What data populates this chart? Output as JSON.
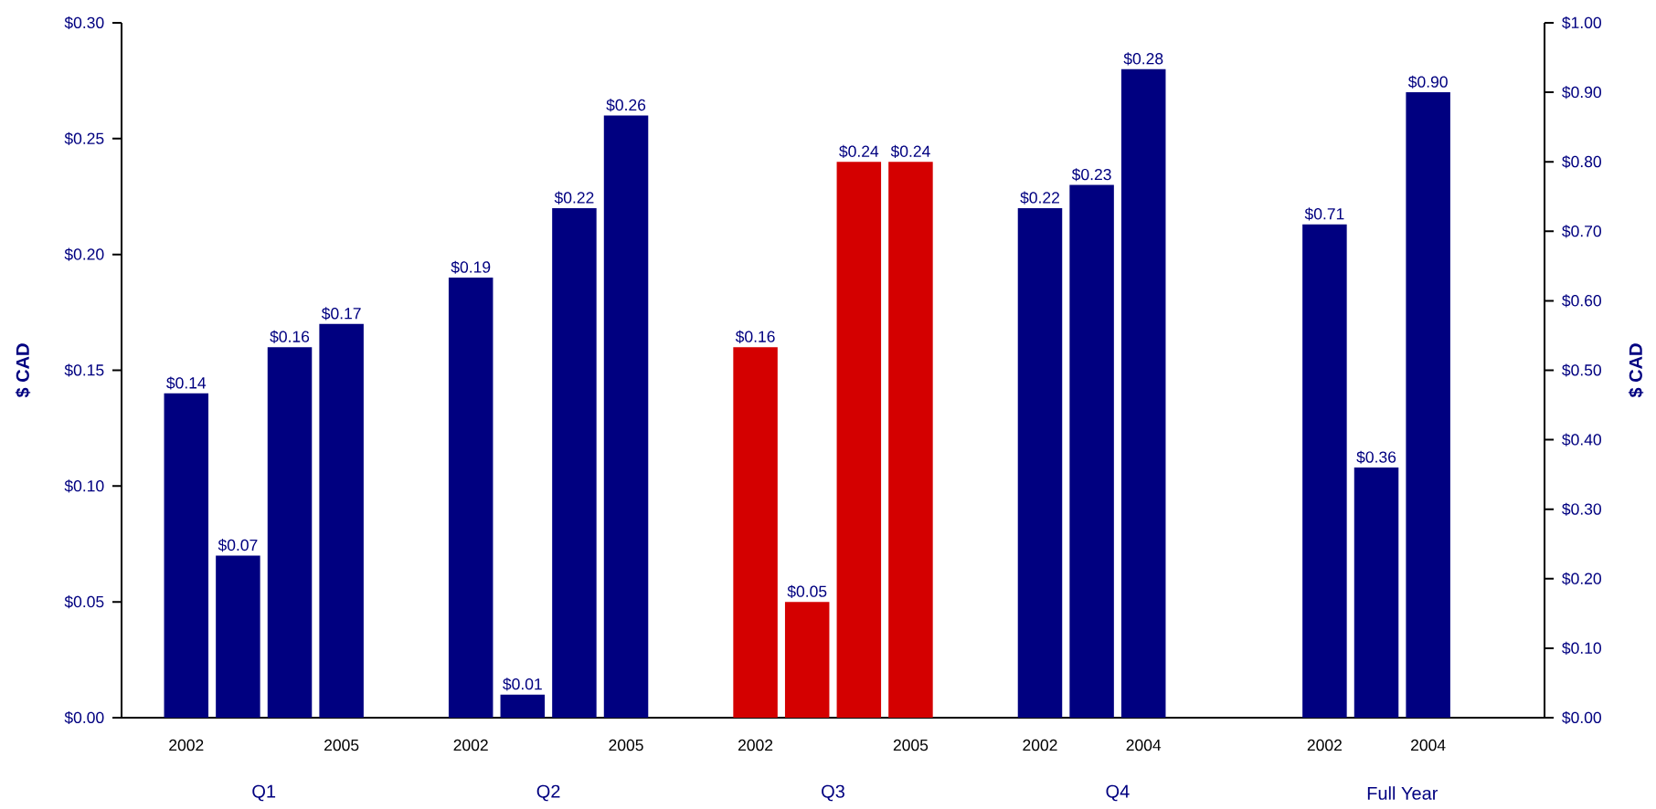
{
  "chart_data": {
    "type": "bar",
    "categories": [
      "2002",
      null,
      null,
      "2005",
      "2002",
      null,
      null,
      "2005",
      "2002",
      null,
      null,
      "2005",
      "2002",
      null,
      "2004",
      null,
      "2002",
      null,
      "2004",
      null
    ],
    "ylabel": "$ CAD",
    "y2label": "$ CAD",
    "ylim": [
      0,
      0.3
    ],
    "yticks": [
      {
        "value": 0,
        "label": "$0.00"
      },
      {
        "value": 0.05,
        "label": "$0.05"
      },
      {
        "value": 0.1,
        "label": "$0.10"
      },
      {
        "value": 0.15,
        "label": "$0.15"
      },
      {
        "value": 0.2,
        "label": "$0.20"
      },
      {
        "value": 0.25,
        "label": "$0.25"
      },
      {
        "value": 0.3,
        "label": "$0.30"
      }
    ],
    "y2lim": [
      0,
      1
    ],
    "y2ticks": [
      {
        "value": 0,
        "label": "$0.00"
      },
      {
        "value": 0.1,
        "label": "$0.10"
      },
      {
        "value": 0.2,
        "label": "$0.20"
      },
      {
        "value": 0.3,
        "label": "$0.30"
      },
      {
        "value": 0.4,
        "label": "$0.40"
      },
      {
        "value": 0.5,
        "label": "$0.50"
      },
      {
        "value": 0.6,
        "label": "$0.60"
      },
      {
        "value": 0.7,
        "label": "$0.70"
      },
      {
        "value": 0.8,
        "label": "$0.80"
      },
      {
        "value": 0.9,
        "label": "$0.90"
      },
      {
        "value": 1,
        "label": "$1.00"
      }
    ],
    "annotations": [
      "Q1",
      "Q2",
      "Q3",
      "Q4",
      "Full Year"
    ],
    "series": [
      {
        "values": [
          0.14,
          0.07,
          0.16,
          0.17,
          0.19,
          0.01,
          0.22,
          0.26,
          0.16,
          0.05,
          0.24,
          0.24,
          0.22,
          0.23,
          0.28,
          null,
          null,
          null,
          null,
          null
        ],
        "colors": [
          "#000080",
          "#000080",
          "#000080",
          "#000080",
          "#000080",
          "#000080",
          "#000080",
          "#000080",
          "#d40000",
          "#d40000",
          "#d40000",
          "#d40000",
          "#000080",
          "#000080",
          "#000080",
          null,
          null,
          null,
          null,
          null
        ],
        "value_labels": [
          "$0.14",
          "$0.07",
          "$0.16",
          "$0.17",
          "$0.19",
          "$0.01",
          "$0.22",
          "$0.26",
          "$0.16",
          "$0.05",
          "$0.24",
          "$0.24",
          "$0.22",
          "$0.23",
          "$0.28",
          null,
          null,
          null,
          null,
          null
        ]
      },
      {
        "axis": "y2",
        "values": [
          null,
          null,
          null,
          null,
          null,
          null,
          null,
          null,
          null,
          null,
          null,
          null,
          null,
          null,
          null,
          null,
          0.71,
          0.36,
          0.9,
          null
        ],
        "colors": [
          null,
          null,
          null,
          null,
          null,
          null,
          null,
          null,
          null,
          null,
          null,
          null,
          null,
          null,
          null,
          null,
          "#000080",
          "#000080",
          "#000080",
          null
        ],
        "value_labels": [
          null,
          null,
          null,
          null,
          null,
          null,
          null,
          null,
          null,
          null,
          null,
          null,
          null,
          null,
          null,
          null,
          "$0.71",
          "$0.36",
          "$0.90",
          null
        ]
      }
    ]
  }
}
